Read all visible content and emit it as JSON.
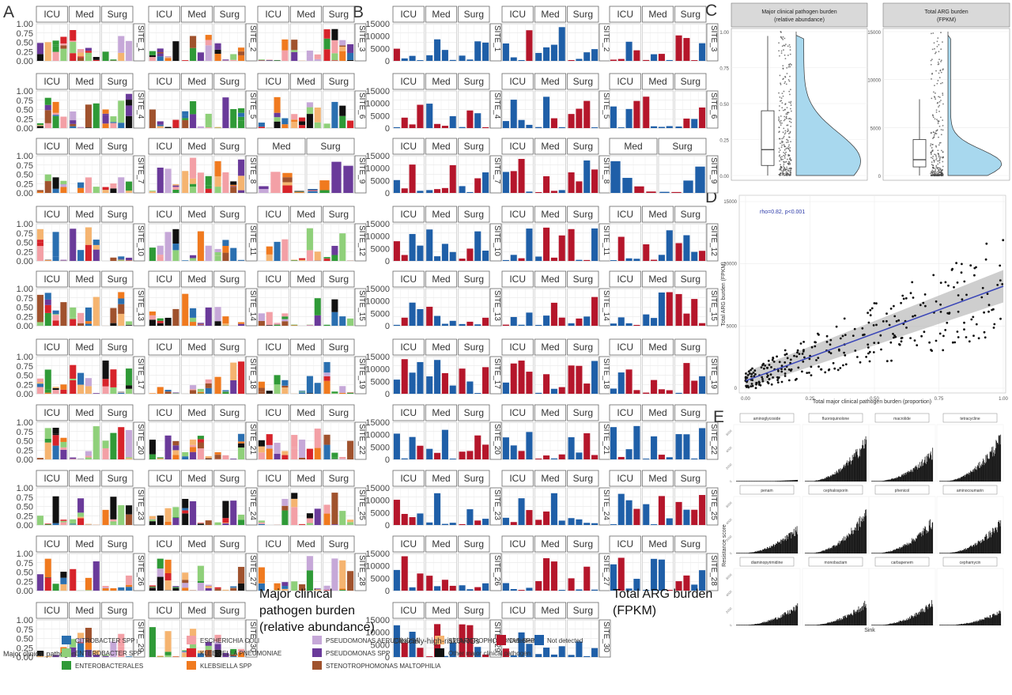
{
  "panel_letters": [
    "A",
    "B",
    "C",
    "D",
    "E"
  ],
  "facet_groups": {
    "icu": "ICU",
    "med": "Med",
    "surg": "Surg"
  },
  "panel_a": {
    "y_ticks": [
      "1.00",
      "0.75",
      "0.50",
      "0.25",
      "0.00"
    ],
    "caption_lines": [
      "Major clinical",
      "pathogen burden",
      "(relative abundance)"
    ]
  },
  "panel_b": {
    "y_ticks": [
      "15000",
      "10000",
      "5000",
      "0"
    ],
    "caption_lines": [
      "Total ARG burden",
      "(FPKM)"
    ]
  },
  "sites": [
    {
      "label": "SITE_1",
      "facets": [
        "ICU",
        "Med",
        "Surg"
      ]
    },
    {
      "label": "SITE_2",
      "facets": [
        "ICU",
        "Med",
        "Surg"
      ]
    },
    {
      "label": "SITE_3",
      "facets": [
        "ICU",
        "Med",
        "Surg"
      ]
    },
    {
      "label": "SITE_4",
      "facets": [
        "ICU",
        "Med",
        "Surg"
      ]
    },
    {
      "label": "SITE_5",
      "facets": [
        "ICU",
        "Med",
        "Surg"
      ]
    },
    {
      "label": "SITE_6",
      "facets": [
        "ICU",
        "Med",
        "Surg"
      ]
    },
    {
      "label": "SITE_7",
      "facets": [
        "ICU",
        "Med",
        "Surg"
      ]
    },
    {
      "label": "SITE_8",
      "facets": [
        "ICU",
        "Med",
        "Surg"
      ]
    },
    {
      "label": "SITE_9",
      "facets": [
        "Med",
        "Surg"
      ]
    },
    {
      "label": "SITE_10",
      "facets": [
        "ICU",
        "Med",
        "Surg"
      ]
    },
    {
      "label": "SITE_11",
      "facets": [
        "ICU",
        "Med",
        "Surg"
      ]
    },
    {
      "label": "SITE_12",
      "facets": [
        "ICU",
        "Med",
        "Surg"
      ]
    },
    {
      "label": "SITE_13",
      "facets": [
        "ICU",
        "Med",
        "Surg"
      ]
    },
    {
      "label": "SITE_14",
      "facets": [
        "ICU",
        "Med",
        "Surg"
      ]
    },
    {
      "label": "SITE_15",
      "facets": [
        "ICU",
        "Med",
        "Surg"
      ]
    },
    {
      "label": "SITE_17",
      "facets": [
        "ICU",
        "Med",
        "Surg"
      ]
    },
    {
      "label": "SITE_18",
      "facets": [
        "ICU",
        "Med",
        "Surg"
      ]
    },
    {
      "label": "SITE_19",
      "facets": [
        "ICU",
        "Med",
        "Surg"
      ]
    },
    {
      "label": "SITE_20",
      "facets": [
        "ICU",
        "Med",
        "Surg"
      ]
    },
    {
      "label": "SITE_21",
      "facets": [
        "ICU",
        "Med",
        "Surg"
      ]
    },
    {
      "label": "SITE_22",
      "facets": [
        "ICU",
        "Med",
        "Surg"
      ]
    },
    {
      "label": "SITE_23",
      "facets": [
        "ICU",
        "Med",
        "Surg"
      ]
    },
    {
      "label": "SITE_24",
      "facets": [
        "ICU",
        "Med",
        "Surg"
      ]
    },
    {
      "label": "SITE_25",
      "facets": [
        "ICU",
        "Med",
        "Surg"
      ]
    },
    {
      "label": "SITE_26",
      "facets": [
        "ICU",
        "Med",
        "Surg"
      ]
    },
    {
      "label": "SITE_27",
      "facets": [
        "ICU",
        "Med",
        "Surg"
      ]
    },
    {
      "label": "SITE_28",
      "facets": [
        "ICU",
        "Med",
        "Surg"
      ]
    },
    {
      "label": "SITE_29",
      "facets": [
        "ICU",
        "Med",
        "Surg"
      ]
    },
    {
      "label": "SITE_30",
      "facets": [
        "ICU",
        "Med",
        "Surg"
      ]
    }
  ],
  "pathogen_legend": {
    "title": "Major clinical pathogen",
    "items": [
      {
        "label": "CITROBACTER SPP",
        "color": "#2a6fb0"
      },
      {
        "label": "ENTEROBACTER SPP",
        "color": "#8fd07a"
      },
      {
        "label": "ENTEROBACTERALES",
        "color": "#2f9a37"
      },
      {
        "label": "ESCHERICHIA COLI",
        "color": "#f3a0a6"
      },
      {
        "label": "KLEBSIELLA PNEUMONIAE",
        "color": "#d7232a"
      },
      {
        "label": "KLEBSIELLA SPP",
        "color": "#f07a1f"
      },
      {
        "label": "PSEUDOMONAS AERUGINOSA",
        "color": "#c6a8d8"
      },
      {
        "label": "PSEUDOMONAS SPP",
        "color": "#6a3a9a"
      },
      {
        "label": "STENOTROPHOMONAS MALTOPHILIA",
        "color": "#a0522d"
      },
      {
        "label": "STENOTROPHOMONAS SPP",
        "color": "#f5b470"
      },
      {
        "label": "Other major clinical pathogen",
        "color": "#111111"
      }
    ]
  },
  "arg_legend": {
    "title": "Clinically-high-risk ARGs",
    "items": [
      {
        "label": "Detected",
        "color": "#b5162b"
      },
      {
        "label": "Not detected",
        "color": "#1f5fa8"
      }
    ]
  },
  "panel_c": {
    "facets": [
      {
        "title_lines": [
          "Major clinical pathogen burden",
          "(relative abundance)"
        ],
        "y_ticks": [
          "1.00",
          "0.75",
          "0.50",
          "0.25",
          "0.00"
        ]
      },
      {
        "title_lines": [
          "Total ARG burden",
          "(FPKM)"
        ],
        "y_ticks": [
          "15000",
          "10000",
          "5000",
          "0"
        ]
      }
    ],
    "fill_color": "#a8d8ee"
  },
  "panel_d": {
    "annotation": "rho=0.82, p<0.001",
    "xlabel": "Total major clinical pathogen burden (proportion)",
    "ylabel": "Total ARG burden (FPKM)",
    "x_ticks": [
      "0.00",
      "0.25",
      "0.50",
      "0.75",
      "1.00"
    ],
    "y_ticks": [
      "15000",
      "10000",
      "5000",
      "0"
    ],
    "line_color": "#3a46b8"
  },
  "panel_e": {
    "ylabel": "Resistance score",
    "xlabel": "Sink",
    "y_ticks": [
      "6000",
      "4000",
      "2000",
      "0"
    ],
    "facets": [
      "aminoglycoside",
      "fluoroquinolone",
      "macrolide",
      "tetracycline",
      "penam",
      "cephalosporin",
      "phenicol",
      "aminocoumarin",
      "diaminopyrimidine",
      "monobactam",
      "carbapenem",
      "cephamycin"
    ]
  },
  "chart_data": [
    {
      "type": "bar",
      "title": "",
      "ylabel": "",
      "ylim": [
        0,
        1
      ],
      "stacked": true
    },
    {
      "type": "bar",
      "title": "",
      "ylabel": "",
      "ylim": [
        0,
        16000
      ],
      "series": [
        {
          "name": "Detected"
        },
        {
          "name": "Not detected"
        }
      ]
    },
    {
      "type": "box",
      "facets": [
        {
          "ylim": [
            0,
            1
          ],
          "median": 0.18,
          "q1": 0.07,
          "q3": 0.45,
          "whisker_low": 0.0,
          "whisker_high": 0.97
        },
        {
          "ylim": [
            0,
            15000
          ],
          "median": 1700,
          "q1": 900,
          "q3": 3700,
          "whisker_low": 0,
          "whisker_high": 7800
        }
      ]
    },
    {
      "type": "scatter",
      "xlim": [
        0,
        1
      ],
      "ylim": [
        0,
        15000
      ],
      "trend": {
        "x": [
          0,
          1
        ],
        "y": [
          600,
          8200
        ]
      }
    },
    {
      "type": "bar",
      "ylim": [
        0,
        7000
      ]
    }
  ]
}
